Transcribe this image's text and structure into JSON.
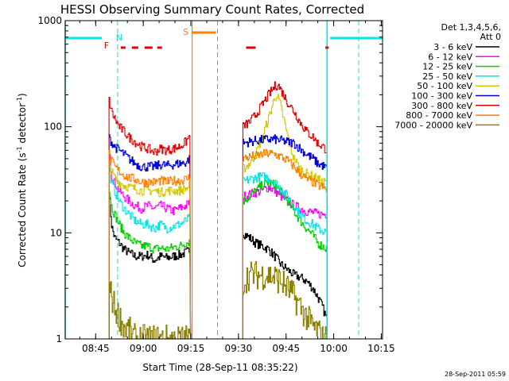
{
  "chart_data": {
    "type": "line",
    "title": "HESSI Observing Summary Count Rates, Corrected",
    "xlabel": "Start Time (28-Sep-11 08:35:22)",
    "ylabel_main": "Corrected Count Rate (s",
    "ylabel_sup1": "-1",
    "ylabel_mid": " detector",
    "ylabel_sup2": "-1",
    "ylabel_end": ")",
    "yscale": "log",
    "ylim": [
      1,
      1000
    ],
    "xlim_minutes": [
      0,
      100
    ],
    "x_ticks": [
      {
        "label": "08:45",
        "t": 9.6
      },
      {
        "label": "09:00",
        "t": 24.6
      },
      {
        "label": "09:15",
        "t": 39.6
      },
      {
        "label": "09:30",
        "t": 54.6
      },
      {
        "label": "09:45",
        "t": 69.6
      },
      {
        "label": "10:00",
        "t": 84.6
      },
      {
        "label": "10:15",
        "t": 99.6
      }
    ],
    "y_ticks": [
      {
        "label": "1",
        "v": 1
      },
      {
        "label": "10",
        "v": 10
      },
      {
        "label": "100",
        "v": 100
      },
      {
        "label": "1000",
        "v": 1000
      }
    ],
    "legend": {
      "header": [
        "Det 1,3,4,5,6,",
        "Att 0"
      ],
      "placement": "right"
    },
    "series": [
      {
        "name": "3 - 6 keV",
        "color": "#000000",
        "seg1": [
          [
            13.8,
            25
          ],
          [
            14.5,
            12
          ],
          [
            15.5,
            9
          ],
          [
            17,
            8
          ],
          [
            18.5,
            7
          ],
          [
            20,
            6.5
          ],
          [
            22,
            6
          ],
          [
            24,
            6
          ],
          [
            26,
            6.2
          ],
          [
            28,
            5.5
          ],
          [
            30,
            6
          ],
          [
            32,
            5.8
          ],
          [
            34,
            6
          ],
          [
            36,
            6.2
          ],
          [
            38,
            6.5
          ],
          [
            39.5,
            7
          ]
        ],
        "seg2": [
          [
            56,
            10
          ],
          [
            58,
            9
          ],
          [
            60,
            8
          ],
          [
            62,
            7.5
          ],
          [
            64,
            7
          ],
          [
            66,
            6
          ],
          [
            68,
            5
          ],
          [
            70,
            4.5
          ],
          [
            72,
            4
          ],
          [
            74,
            3.8
          ],
          [
            76,
            3.5
          ],
          [
            78,
            3
          ],
          [
            79.5,
            2.5
          ],
          [
            81,
            2
          ],
          [
            82.5,
            1.5
          ]
        ]
      },
      {
        "name": "6 - 12 keV",
        "color": "#ff00ff",
        "seg1": [
          [
            13.8,
            60
          ],
          [
            14.5,
            35
          ],
          [
            15.5,
            30
          ],
          [
            17,
            25
          ],
          [
            18.5,
            22
          ],
          [
            20,
            20
          ],
          [
            22,
            18
          ],
          [
            24,
            17
          ],
          [
            26,
            18
          ],
          [
            28,
            17
          ],
          [
            30,
            18
          ],
          [
            32,
            17
          ],
          [
            34,
            16
          ],
          [
            36,
            17
          ],
          [
            38,
            18
          ],
          [
            39.5,
            20
          ]
        ],
        "seg2": [
          [
            56,
            22
          ],
          [
            58,
            23
          ],
          [
            60,
            24
          ],
          [
            62,
            25
          ],
          [
            64,
            27
          ],
          [
            66,
            25
          ],
          [
            68,
            22
          ],
          [
            70,
            20
          ],
          [
            72,
            18
          ],
          [
            74,
            17
          ],
          [
            76,
            16
          ],
          [
            78,
            15.5
          ],
          [
            79.5,
            15
          ],
          [
            81,
            15
          ],
          [
            82.5,
            15
          ]
        ]
      },
      {
        "name": "12 - 25 keV",
        "color": "#00cc00",
        "seg1": [
          [
            13.8,
            25
          ],
          [
            14.5,
            18
          ],
          [
            15.5,
            15
          ],
          [
            17,
            12
          ],
          [
            18.5,
            10
          ],
          [
            20,
            9
          ],
          [
            22,
            8
          ],
          [
            24,
            7.5
          ],
          [
            26,
            7.5
          ],
          [
            28,
            7
          ],
          [
            30,
            7.2
          ],
          [
            32,
            7
          ],
          [
            34,
            7.3
          ],
          [
            36,
            7.5
          ],
          [
            38,
            8
          ],
          [
            39.5,
            8.5
          ]
        ],
        "seg2": [
          [
            56,
            20
          ],
          [
            58,
            22
          ],
          [
            60,
            25
          ],
          [
            62,
            28
          ],
          [
            64,
            30
          ],
          [
            66,
            28
          ],
          [
            68,
            24
          ],
          [
            70,
            20
          ],
          [
            72,
            16
          ],
          [
            74,
            13
          ],
          [
            76,
            11
          ],
          [
            78,
            9.5
          ],
          [
            79.5,
            8
          ],
          [
            81,
            7.5
          ],
          [
            82.5,
            7
          ]
        ]
      },
      {
        "name": "25 - 50 keV",
        "color": "#00e5e5",
        "seg1": [
          [
            13.8,
            40
          ],
          [
            14.5,
            30
          ],
          [
            15.5,
            25
          ],
          [
            17,
            20
          ],
          [
            18.5,
            17
          ],
          [
            20,
            15
          ],
          [
            22,
            13
          ],
          [
            24,
            12
          ],
          [
            26,
            12
          ],
          [
            28,
            11
          ],
          [
            30,
            12
          ],
          [
            32,
            11
          ],
          [
            34,
            11.5
          ],
          [
            36,
            12
          ],
          [
            38,
            13
          ],
          [
            39.5,
            14
          ]
        ],
        "seg2": [
          [
            56,
            30
          ],
          [
            58,
            32
          ],
          [
            60,
            33
          ],
          [
            62,
            34
          ],
          [
            64,
            33
          ],
          [
            66,
            30
          ],
          [
            68,
            26
          ],
          [
            70,
            22
          ],
          [
            72,
            18
          ],
          [
            74,
            15
          ],
          [
            76,
            13
          ],
          [
            78,
            12
          ],
          [
            79.5,
            11
          ],
          [
            81,
            10.5
          ],
          [
            82.5,
            10
          ]
        ]
      },
      {
        "name": "50 - 100 keV",
        "color": "#d4c800",
        "seg1": [
          [
            13.8,
            45
          ],
          [
            14.5,
            38
          ],
          [
            15.5,
            33
          ],
          [
            17,
            30
          ],
          [
            18.5,
            28
          ],
          [
            20,
            27
          ],
          [
            22,
            26
          ],
          [
            24,
            25
          ],
          [
            26,
            25
          ],
          [
            28,
            25
          ],
          [
            30,
            24
          ],
          [
            32,
            25
          ],
          [
            34,
            25
          ],
          [
            36,
            25
          ],
          [
            38,
            26
          ],
          [
            39.5,
            28
          ]
        ],
        "seg2": [
          [
            56,
            40
          ],
          [
            58,
            45
          ],
          [
            60,
            55
          ],
          [
            62,
            80
          ],
          [
            64,
            120
          ],
          [
            65.5,
            170
          ],
          [
            66.5,
            200
          ],
          [
            67.5,
            170
          ],
          [
            69,
            110
          ],
          [
            70.5,
            70
          ],
          [
            72,
            50
          ],
          [
            74,
            40
          ],
          [
            76,
            36
          ],
          [
            78,
            34
          ],
          [
            79.5,
            32
          ],
          [
            81,
            30
          ],
          [
            82.5,
            30
          ]
        ]
      },
      {
        "name": "100 - 300 keV",
        "color": "#0000e0",
        "seg1": [
          [
            13.8,
            78
          ],
          [
            14.5,
            72
          ],
          [
            15.5,
            65
          ],
          [
            17,
            60
          ],
          [
            18.5,
            55
          ],
          [
            20,
            50
          ],
          [
            22,
            45
          ],
          [
            24,
            42
          ],
          [
            26,
            42
          ],
          [
            28,
            42
          ],
          [
            30,
            44
          ],
          [
            32,
            43
          ],
          [
            34,
            44
          ],
          [
            36,
            45
          ],
          [
            38,
            46
          ],
          [
            39.5,
            52
          ]
        ],
        "seg2": [
          [
            56,
            70
          ],
          [
            58,
            72
          ],
          [
            60,
            74
          ],
          [
            62,
            75
          ],
          [
            64,
            76
          ],
          [
            66,
            76
          ],
          [
            68,
            74
          ],
          [
            70,
            72
          ],
          [
            72,
            70
          ],
          [
            74,
            62
          ],
          [
            76,
            55
          ],
          [
            78,
            50
          ],
          [
            79.5,
            45
          ],
          [
            81,
            43
          ],
          [
            82.5,
            40
          ]
        ]
      },
      {
        "name": "300 - 800 keV",
        "color": "#e00000",
        "seg1": [
          [
            13.8,
            175
          ],
          [
            14.5,
            140
          ],
          [
            15.5,
            120
          ],
          [
            17,
            100
          ],
          [
            18.5,
            90
          ],
          [
            20,
            80
          ],
          [
            22,
            72
          ],
          [
            24,
            65
          ],
          [
            26,
            62
          ],
          [
            28,
            58
          ],
          [
            30,
            62
          ],
          [
            32,
            60
          ],
          [
            34,
            62
          ],
          [
            36,
            65
          ],
          [
            38,
            72
          ],
          [
            39.5,
            85
          ]
        ],
        "seg2": [
          [
            56,
            100
          ],
          [
            58,
            110
          ],
          [
            60,
            130
          ],
          [
            62,
            160
          ],
          [
            64,
            200
          ],
          [
            66,
            240
          ],
          [
            67,
            250
          ],
          [
            68,
            220
          ],
          [
            70,
            170
          ],
          [
            72,
            140
          ],
          [
            74,
            110
          ],
          [
            76,
            90
          ],
          [
            78,
            80
          ],
          [
            79.5,
            70
          ],
          [
            81,
            65
          ],
          [
            82.5,
            60
          ]
        ]
      },
      {
        "name": "800 - 7000 keV",
        "color": "#ff8000",
        "seg1": [
          [
            13.8,
            55
          ],
          [
            14.5,
            48
          ],
          [
            15.5,
            42
          ],
          [
            17,
            38
          ],
          [
            18.5,
            35
          ],
          [
            20,
            33
          ],
          [
            22,
            32
          ],
          [
            24,
            30
          ],
          [
            26,
            30
          ],
          [
            28,
            30
          ],
          [
            30,
            31
          ],
          [
            32,
            30
          ],
          [
            34,
            31
          ],
          [
            36,
            31
          ],
          [
            38,
            32
          ],
          [
            39.5,
            34
          ]
        ],
        "seg2": [
          [
            56,
            50
          ],
          [
            58,
            52
          ],
          [
            60,
            53
          ],
          [
            62,
            55
          ],
          [
            64,
            56
          ],
          [
            66,
            55
          ],
          [
            68,
            52
          ],
          [
            70,
            48
          ],
          [
            72,
            42
          ],
          [
            74,
            36
          ],
          [
            76,
            32
          ],
          [
            78,
            30
          ],
          [
            79.5,
            28
          ],
          [
            81,
            27
          ],
          [
            82.5,
            25
          ]
        ]
      },
      {
        "name": "7000 - 20000 keV",
        "color": "#8b8000",
        "seg1": [
          [
            13.8,
            3
          ],
          [
            14.5,
            2.5
          ],
          [
            15.5,
            2
          ],
          [
            17,
            1.6
          ],
          [
            18.5,
            1.3
          ],
          [
            20,
            1.2
          ],
          [
            22,
            1
          ],
          [
            39.5,
            1
          ]
        ],
        "seg2": [
          [
            56,
            3.5
          ],
          [
            58,
            4
          ],
          [
            60,
            4
          ],
          [
            62,
            4
          ],
          [
            64,
            4
          ],
          [
            66,
            3.8
          ],
          [
            68,
            3.5
          ],
          [
            70,
            3
          ],
          [
            72,
            2.5
          ],
          [
            74,
            2
          ],
          [
            76,
            1.6
          ],
          [
            78,
            1.3
          ],
          [
            79.5,
            1.2
          ],
          [
            81,
            1
          ],
          [
            82.5,
            1
          ]
        ]
      }
    ],
    "bands": {
      "cyan_top_left": [
        0,
        11.5
      ],
      "cyan_top_right": [
        83.5,
        100
      ],
      "orange_top": [
        40,
        47.5
      ],
      "cyan_vlines_solid": [
        0,
        82.5
      ],
      "cyan_vlines_dashed": [
        16.5,
        92.5
      ],
      "orange_vline_solid": 40,
      "orange_vline_dashed": 48
    },
    "flare_segments": [
      [
        17.5,
        19
      ],
      [
        21,
        23
      ],
      [
        25,
        27.5
      ],
      [
        29,
        30.5
      ],
      [
        57,
        60
      ],
      [
        82,
        83
      ]
    ],
    "markers": [
      {
        "label": "N",
        "t": 17.0,
        "color": "#00e5e5"
      },
      {
        "label": "F",
        "t": 13.0,
        "color": "#e00000"
      },
      {
        "label": "S",
        "t": 38.0,
        "color": "#ff8000"
      }
    ]
  },
  "footer": {
    "stamp": "28-Sep-2011 05:59"
  }
}
